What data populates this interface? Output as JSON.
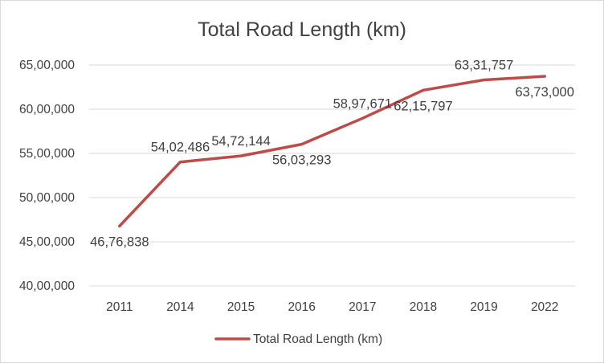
{
  "chart_data": {
    "type": "line",
    "title": "Total Road Length (km)",
    "xlabel": "",
    "ylabel": "",
    "categories": [
      "2011",
      "2014",
      "2015",
      "2016",
      "2017",
      "2018",
      "2019",
      "2022"
    ],
    "series": [
      {
        "name": "Total Road Length (km)",
        "values": [
          4676838,
          5402486,
          5472144,
          5603293,
          5897671,
          6215797,
          6331757,
          6373000
        ],
        "labels": [
          "46,76,838",
          "54,02,486",
          "54,72,144",
          "56,03,293",
          "58,97,671",
          "62,15,797",
          "63,31,757",
          "63,73,000"
        ],
        "color": "#be4b48"
      }
    ],
    "ylim": [
      4000000,
      6500000
    ],
    "yticks": [
      4000000,
      4500000,
      5000000,
      5500000,
      6000000,
      6500000
    ],
    "ytick_labels": [
      "40,00,000",
      "45,00,000",
      "50,00,000",
      "55,00,000",
      "60,00,000",
      "65,00,000"
    ],
    "grid": true,
    "legend": "bottom"
  }
}
